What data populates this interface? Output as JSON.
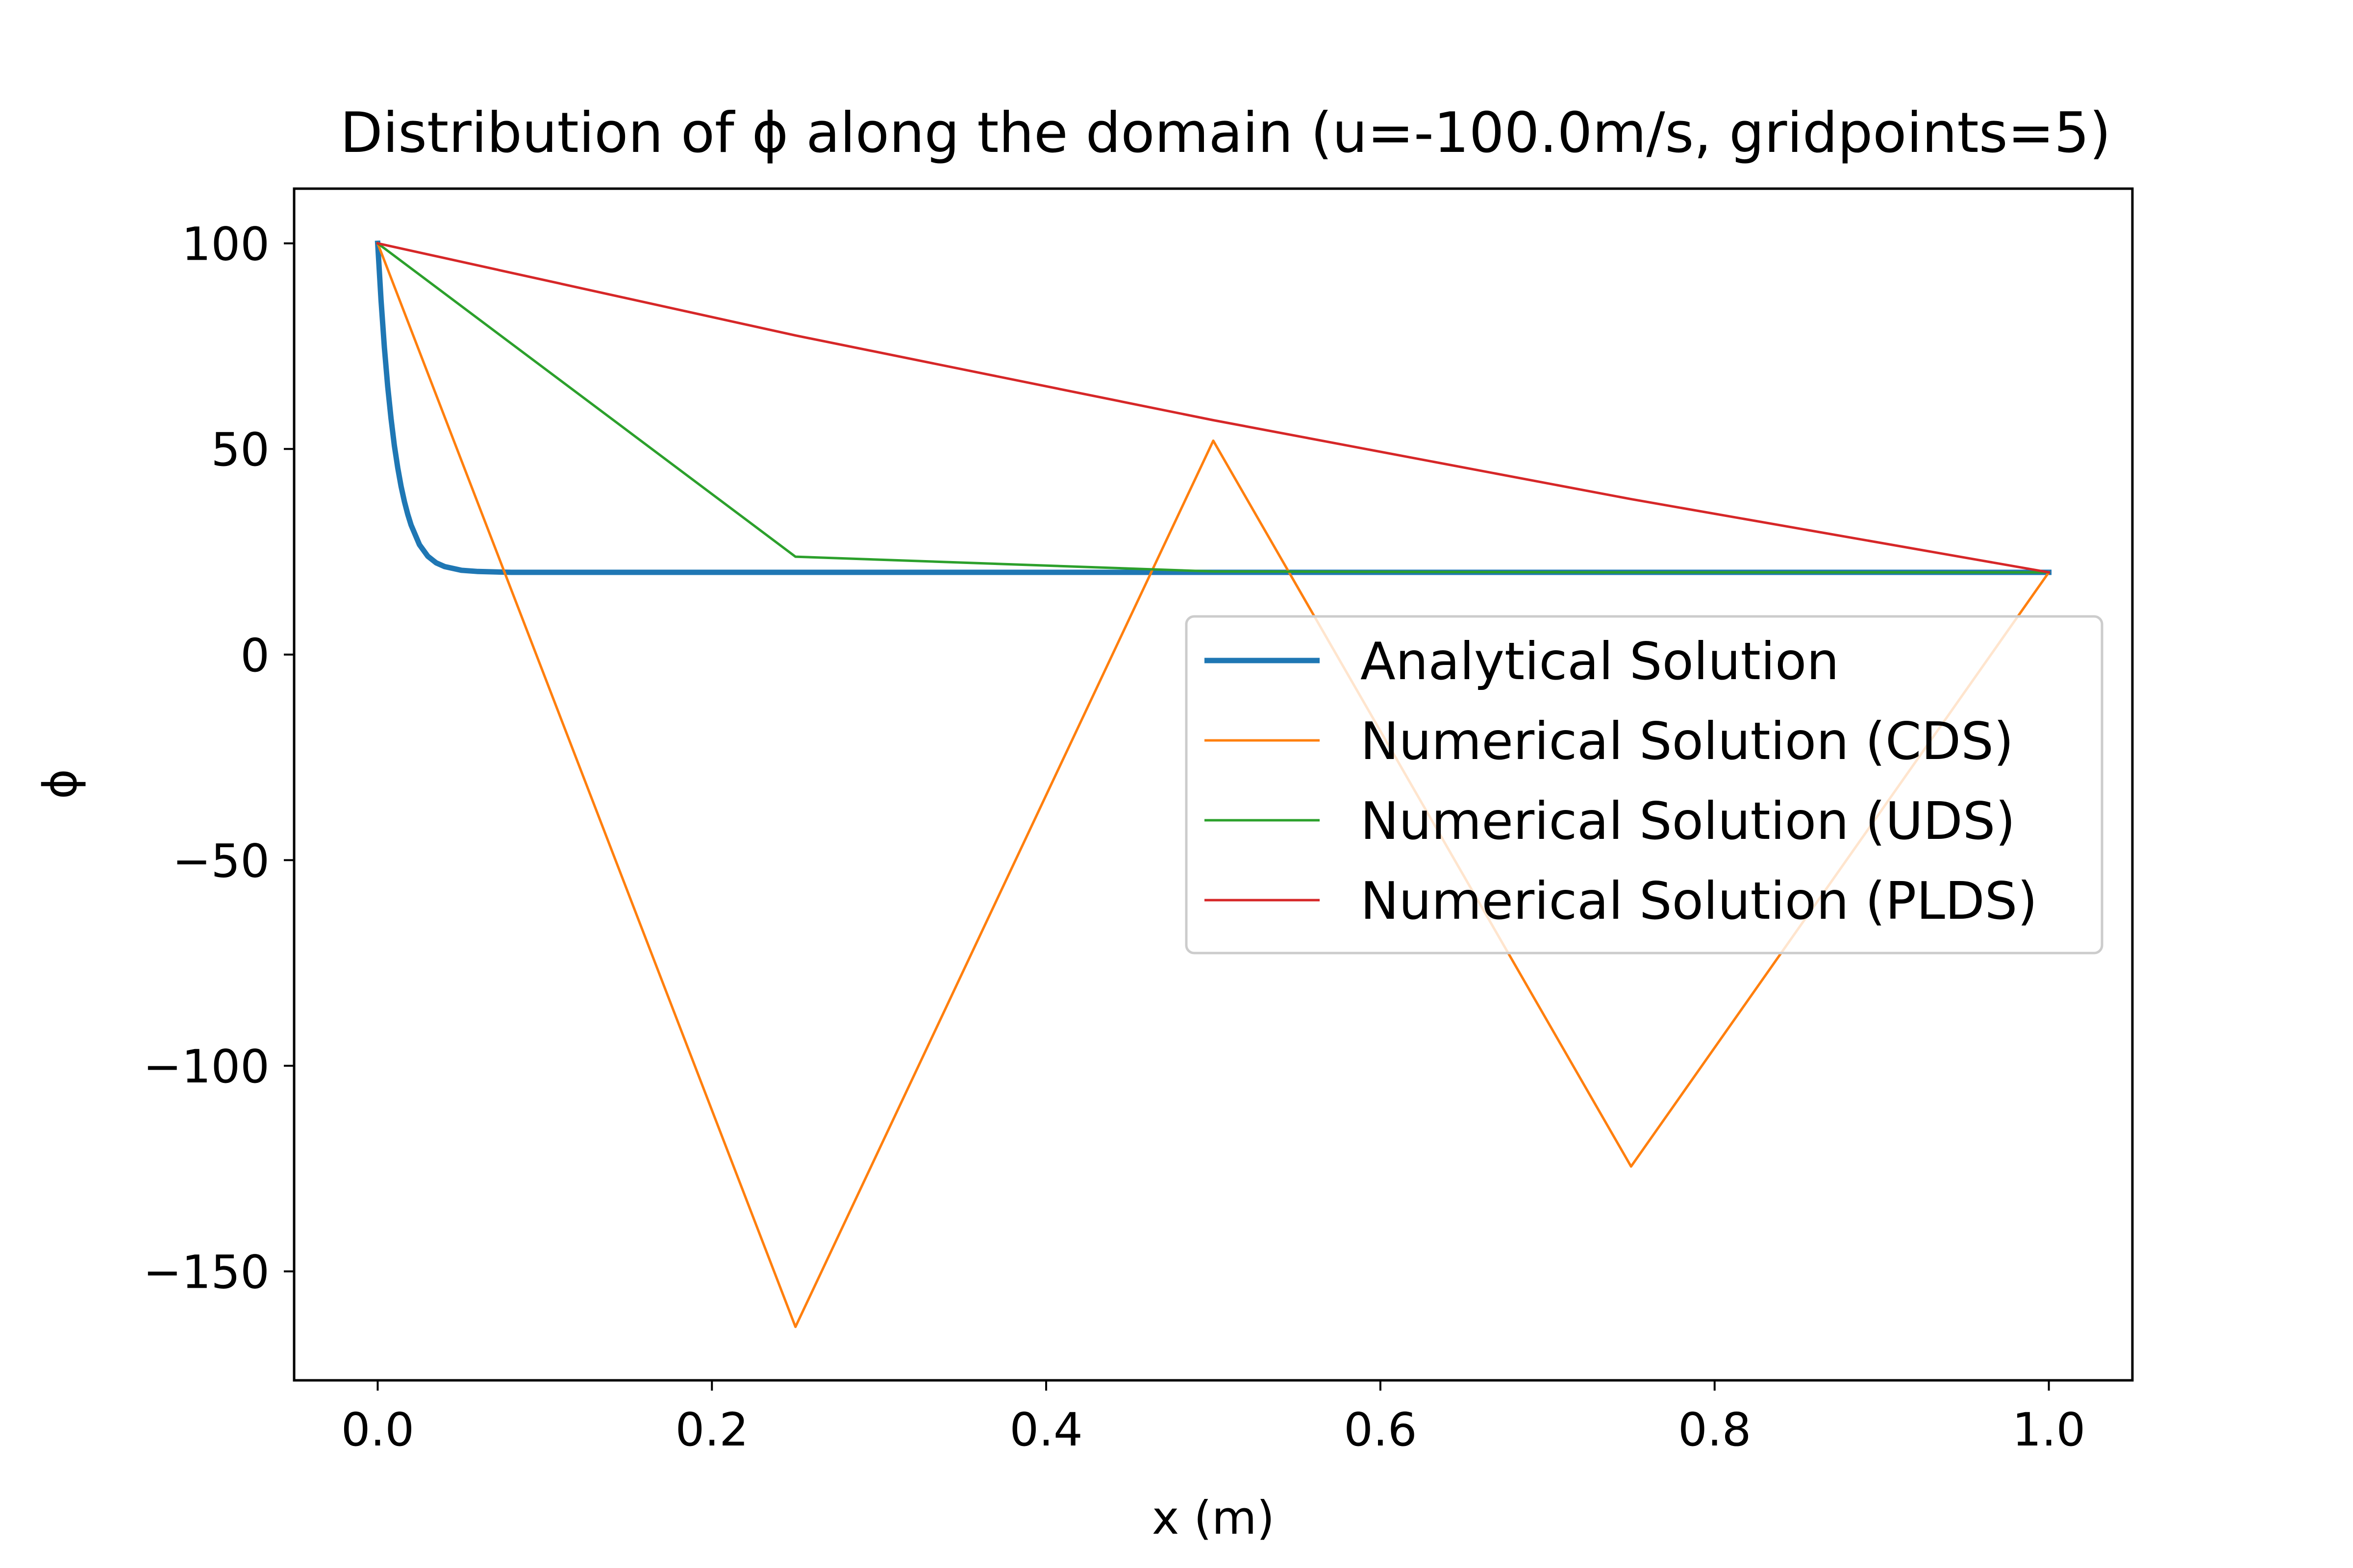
{
  "chart_data": {
    "type": "line",
    "title": "Distribution of ϕ along the domain (u=-100.0m/s, gridpoints=5)",
    "xlabel": "x (m)",
    "ylabel": "ϕ",
    "xlim": [
      -0.05,
      1.05
    ],
    "ylim": [
      -176.5,
      113.3
    ],
    "grid": false,
    "legend_position": "center-right",
    "x_ticks": [
      {
        "value": 0.0,
        "label": "0.0"
      },
      {
        "value": 0.2,
        "label": "0.2"
      },
      {
        "value": 0.4,
        "label": "0.4"
      },
      {
        "value": 0.6,
        "label": "0.6"
      },
      {
        "value": 0.8,
        "label": "0.8"
      },
      {
        "value": 1.0,
        "label": "1.0"
      }
    ],
    "y_ticks": [
      {
        "value": 100,
        "label": "100"
      },
      {
        "value": 50,
        "label": "50"
      },
      {
        "value": 0,
        "label": "0"
      },
      {
        "value": -50,
        "label": "−50"
      },
      {
        "value": -100,
        "label": "−100"
      },
      {
        "value": -150,
        "label": "−150"
      }
    ],
    "series": [
      {
        "name": "Analytical Solution",
        "color": "#1f77b4",
        "line_width": "thick",
        "x": [
          0,
          0.002,
          0.004,
          0.006,
          0.008,
          0.01,
          0.012,
          0.014,
          0.016,
          0.018,
          0.02,
          0.025,
          0.03,
          0.035,
          0.04,
          0.05,
          0.06,
          0.08,
          0.1,
          0.2,
          0.4,
          0.6,
          0.8,
          1.0
        ],
        "y": [
          100,
          86.2,
          74.7,
          65.2,
          57.4,
          50.8,
          45.4,
          40.9,
          37.2,
          34.1,
          31.5,
          26.7,
          23.9,
          22.3,
          21.4,
          20.5,
          20.2,
          20.0,
          20.0,
          20.0,
          20.0,
          20.0,
          20.0,
          20.0
        ]
      },
      {
        "name": "Numerical Solution (CDS)",
        "color": "#ff7f0e",
        "line_width": "thin",
        "x": [
          0,
          0.25,
          0.5,
          0.75,
          1.0
        ],
        "y": [
          100,
          -163.5,
          52,
          -124.5,
          20
        ]
      },
      {
        "name": "Numerical Solution (UDS)",
        "color": "#2ca02c",
        "line_width": "thin",
        "x": [
          0,
          0.25,
          0.5,
          0.75,
          1.0
        ],
        "y": [
          100,
          23.8,
          20.2,
          20.0,
          20
        ]
      },
      {
        "name": "Numerical Solution (PLDS)",
        "color": "#d62728",
        "line_width": "thin",
        "x": [
          0,
          0.25,
          0.5,
          0.75,
          1.0
        ],
        "y": [
          100,
          77.6,
          57.0,
          37.8,
          20
        ]
      }
    ]
  }
}
